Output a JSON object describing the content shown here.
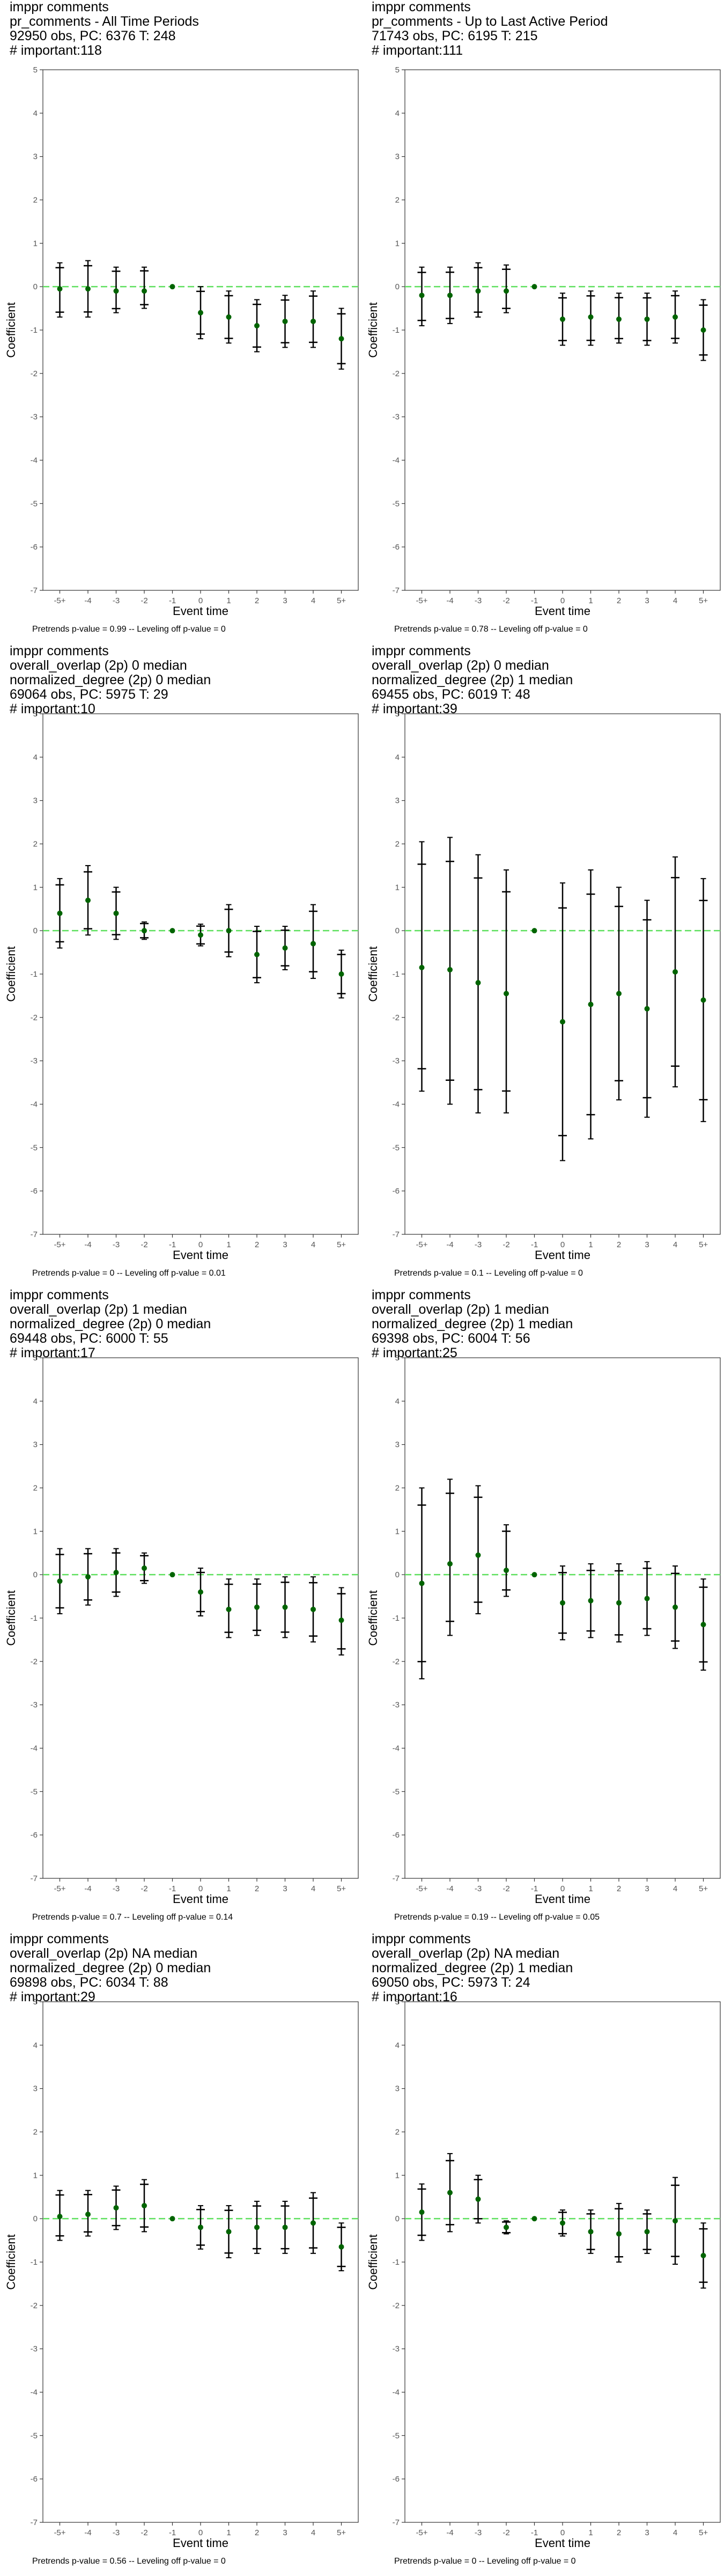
{
  "chart_data": [
    {
      "type": "scatter",
      "title_lines": [
        "imppr comments",
        "pr_comments - All Time Periods",
        "92950 obs, PC: 6376 T: 248",
        "# important:118"
      ],
      "xlabel": "Event time",
      "ylabel": "Coefficient",
      "categories": [
        "-5+",
        "-4",
        "-3",
        "-2",
        "-1",
        "0",
        "1",
        "2",
        "3",
        "4",
        "5+"
      ],
      "ylim": [
        -7,
        5
      ],
      "yticks": [
        5,
        4,
        3,
        2,
        1,
        0,
        -1,
        -2,
        -3,
        -4,
        -5,
        -6,
        -7
      ],
      "estimates": [
        -0.05,
        -0.05,
        -0.1,
        -0.1,
        0,
        -0.6,
        -0.7,
        -0.9,
        -0.8,
        -0.8,
        -1.2
      ],
      "ci_lower": [
        -0.7,
        -0.7,
        -0.6,
        -0.5,
        0,
        -1.2,
        -1.3,
        -1.5,
        -1.4,
        -1.4,
        -1.9
      ],
      "ci_upper": [
        0.55,
        0.6,
        0.45,
        0.45,
        0,
        0.0,
        -0.1,
        -0.3,
        -0.2,
        -0.1,
        -0.5
      ],
      "footnote": "Pretrends p-value = 0.99 -- Leveling off p-value = 0",
      "zero_line_color": "#5fe05f",
      "point_color": "#006400",
      "grid": false
    },
    {
      "type": "scatter",
      "title_lines": [
        "imppr comments",
        "pr_comments - Up to Last Active Period",
        "71743 obs, PC: 6195 T: 215",
        "# important:111"
      ],
      "xlabel": "Event time",
      "ylabel": "Coefficient",
      "categories": [
        "-5+",
        "-4",
        "-3",
        "-2",
        "-1",
        "0",
        "1",
        "2",
        "3",
        "4",
        "5+"
      ],
      "ylim": [
        -7,
        5
      ],
      "yticks": [
        5,
        4,
        3,
        2,
        1,
        0,
        -1,
        -2,
        -3,
        -4,
        -5,
        -6,
        -7
      ],
      "estimates": [
        -0.2,
        -0.2,
        -0.1,
        -0.1,
        0,
        -0.75,
        -0.7,
        -0.75,
        -0.75,
        -0.7,
        -1.0
      ],
      "ci_lower": [
        -0.9,
        -0.85,
        -0.7,
        -0.6,
        0,
        -1.35,
        -1.35,
        -1.3,
        -1.35,
        -1.3,
        -1.7
      ],
      "ci_upper": [
        0.45,
        0.45,
        0.55,
        0.5,
        0,
        -0.15,
        -0.1,
        -0.15,
        -0.15,
        -0.1,
        -0.3
      ],
      "footnote": "Pretrends p-value = 0.78 -- Leveling off p-value = 0",
      "zero_line_color": "#5fe05f",
      "point_color": "#006400",
      "grid": false
    },
    {
      "type": "scatter",
      "title_lines": [
        "imppr comments",
        "overall_overlap (2p) 0 median",
        "normalized_degree (2p) 0 median",
        "69064 obs, PC: 5975 T: 29",
        "# important:10"
      ],
      "xlabel": "Event time",
      "ylabel": "Coefficient",
      "categories": [
        "-5+",
        "-4",
        "-3",
        "-2",
        "-1",
        "0",
        "1",
        "2",
        "3",
        "4",
        "5+"
      ],
      "ylim": [
        -7,
        5
      ],
      "yticks": [
        5,
        4,
        3,
        2,
        1,
        0,
        -1,
        -2,
        -3,
        -4,
        -5,
        -6,
        -7
      ],
      "estimates": [
        0.4,
        0.7,
        0.4,
        0.0,
        0,
        -0.1,
        0.0,
        -0.55,
        -0.4,
        -0.3,
        -1.0
      ],
      "ci_lower": [
        -0.4,
        -0.1,
        -0.2,
        -0.2,
        0,
        -0.35,
        -0.6,
        -1.2,
        -0.9,
        -1.1,
        -1.55
      ],
      "ci_upper": [
        1.2,
        1.5,
        1.0,
        0.2,
        0,
        0.15,
        0.6,
        0.1,
        0.1,
        0.6,
        -0.45
      ],
      "footnote": "Pretrends p-value = 0 -- Leveling off p-value = 0.01",
      "zero_line_color": "#5fe05f",
      "point_color": "#006400",
      "grid": false
    },
    {
      "type": "scatter",
      "title_lines": [
        "imppr comments",
        "overall_overlap (2p) 0 median",
        "normalized_degree (2p) 1 median",
        "69455 obs, PC: 6019 T: 48",
        "# important:39"
      ],
      "xlabel": "Event time",
      "ylabel": "Coefficient",
      "categories": [
        "-5+",
        "-4",
        "-3",
        "-2",
        "-1",
        "0",
        "1",
        "2",
        "3",
        "4",
        "5+"
      ],
      "ylim": [
        -7,
        5
      ],
      "yticks": [
        5,
        4,
        3,
        2,
        1,
        0,
        -1,
        -2,
        -3,
        -4,
        -5,
        -6,
        -7
      ],
      "estimates": [
        -0.85,
        -0.9,
        -1.2,
        -1.45,
        0,
        -2.1,
        -1.7,
        -1.45,
        -1.8,
        -0.95,
        -1.6
      ],
      "ci_lower": [
        -3.7,
        -4.0,
        -4.2,
        -4.2,
        0,
        -5.3,
        -4.8,
        -3.9,
        -4.3,
        -3.6,
        -4.4
      ],
      "ci_upper": [
        2.05,
        2.15,
        1.75,
        1.4,
        0,
        1.1,
        1.4,
        1.0,
        0.7,
        1.7,
        1.2
      ],
      "footnote": "Pretrends p-value = 0.1 -- Leveling off p-value = 0",
      "zero_line_color": "#5fe05f",
      "point_color": "#006400",
      "grid": false
    },
    {
      "type": "scatter",
      "title_lines": [
        "imppr comments",
        "overall_overlap (2p) 1 median",
        "normalized_degree (2p) 0 median",
        "69448 obs, PC: 6000 T: 55",
        "# important:17"
      ],
      "xlabel": "Event time",
      "ylabel": "Coefficient",
      "categories": [
        "-5+",
        "-4",
        "-3",
        "-2",
        "-1",
        "0",
        "1",
        "2",
        "3",
        "4",
        "5+"
      ],
      "ylim": [
        -7,
        5
      ],
      "yticks": [
        5,
        4,
        3,
        2,
        1,
        0,
        -1,
        -2,
        -3,
        -4,
        -5,
        -6,
        -7
      ],
      "estimates": [
        -0.15,
        -0.05,
        0.05,
        0.15,
        0,
        -0.4,
        -0.8,
        -0.75,
        -0.75,
        -0.8,
        -1.05
      ],
      "ci_lower": [
        -0.9,
        -0.7,
        -0.5,
        -0.2,
        0,
        -0.95,
        -1.45,
        -1.4,
        -1.45,
        -1.55,
        -1.85
      ],
      "ci_upper": [
        0.6,
        0.6,
        0.6,
        0.5,
        0,
        0.15,
        -0.1,
        -0.1,
        -0.05,
        -0.05,
        -0.3
      ],
      "footnote": "Pretrends p-value = 0.7 -- Leveling off p-value = 0.14",
      "zero_line_color": "#5fe05f",
      "point_color": "#006400",
      "grid": false
    },
    {
      "type": "scatter",
      "title_lines": [
        "imppr comments",
        "overall_overlap (2p) 1 median",
        "normalized_degree (2p) 1 median",
        "69398 obs, PC: 6004 T: 56",
        "# important:25"
      ],
      "xlabel": "Event time",
      "ylabel": "Coefficient",
      "categories": [
        "-5+",
        "-4",
        "-3",
        "-2",
        "-1",
        "0",
        "1",
        "2",
        "3",
        "4",
        "5+"
      ],
      "ylim": [
        -7,
        5
      ],
      "yticks": [
        5,
        4,
        3,
        2,
        1,
        0,
        -1,
        -2,
        -3,
        -4,
        -5,
        -6,
        -7
      ],
      "estimates": [
        -0.2,
        0.25,
        0.45,
        0.1,
        0,
        -0.65,
        -0.6,
        -0.65,
        -0.55,
        -0.75,
        -1.15
      ],
      "ci_lower": [
        -2.4,
        -1.4,
        -0.9,
        -0.5,
        0,
        -1.5,
        -1.45,
        -1.55,
        -1.4,
        -1.7,
        -2.2
      ],
      "ci_upper": [
        2.0,
        2.2,
        2.05,
        1.15,
        0,
        0.2,
        0.25,
        0.25,
        0.3,
        0.2,
        -0.1
      ],
      "footnote": "Pretrends p-value = 0.19 -- Leveling off p-value = 0.05",
      "zero_line_color": "#5fe05f",
      "point_color": "#006400",
      "grid": false
    },
    {
      "type": "scatter",
      "title_lines": [
        "imppr comments",
        "overall_overlap (2p) NA median",
        "normalized_degree (2p) 0 median",
        "69898 obs, PC: 6034 T: 88",
        "# important:29"
      ],
      "xlabel": "Event time",
      "ylabel": "Coefficient",
      "categories": [
        "-5+",
        "-4",
        "-3",
        "-2",
        "-1",
        "0",
        "1",
        "2",
        "3",
        "4",
        "5+"
      ],
      "ylim": [
        -7,
        5
      ],
      "yticks": [
        5,
        4,
        3,
        2,
        1,
        0,
        -1,
        -2,
        -3,
        -4,
        -5,
        -6,
        -7
      ],
      "estimates": [
        0.05,
        0.1,
        0.25,
        0.3,
        0,
        -0.2,
        -0.3,
        -0.2,
        -0.2,
        -0.1,
        -0.65
      ],
      "ci_lower": [
        -0.5,
        -0.4,
        -0.25,
        -0.3,
        0,
        -0.7,
        -0.9,
        -0.8,
        -0.8,
        -0.8,
        -1.2
      ],
      "ci_upper": [
        0.65,
        0.65,
        0.75,
        0.9,
        0,
        0.3,
        0.3,
        0.4,
        0.4,
        0.6,
        -0.1
      ],
      "footnote": "Pretrends p-value = 0.56 -- Leveling off p-value = 0",
      "zero_line_color": "#5fe05f",
      "point_color": "#006400",
      "grid": false
    },
    {
      "type": "scatter",
      "title_lines": [
        "imppr comments",
        "overall_overlap (2p) NA median",
        "normalized_degree (2p) 1 median",
        "69050 obs, PC: 5973 T: 24",
        "# important:16"
      ],
      "xlabel": "Event time",
      "ylabel": "Coefficient",
      "categories": [
        "-5+",
        "-4",
        "-3",
        "-2",
        "-1",
        "0",
        "1",
        "2",
        "3",
        "4",
        "5+"
      ],
      "ylim": [
        -7,
        5
      ],
      "yticks": [
        5,
        4,
        3,
        2,
        1,
        0,
        -1,
        -2,
        -3,
        -4,
        -5,
        -6,
        -7
      ],
      "estimates": [
        0.15,
        0.6,
        0.45,
        -0.2,
        0,
        -0.1,
        -0.3,
        -0.35,
        -0.3,
        -0.05,
        -0.85
      ],
      "ci_lower": [
        -0.5,
        -0.3,
        -0.1,
        -0.35,
        0,
        -0.4,
        -0.8,
        -1.0,
        -0.8,
        -1.05,
        -1.6
      ],
      "ci_upper": [
        0.8,
        1.5,
        1.0,
        -0.05,
        0,
        0.2,
        0.2,
        0.35,
        0.2,
        0.95,
        -0.1
      ],
      "footnote": "Pretrends p-value = 0 -- Leveling off p-value = 0",
      "zero_line_color": "#5fe05f",
      "point_color": "#006400",
      "grid": false
    }
  ]
}
